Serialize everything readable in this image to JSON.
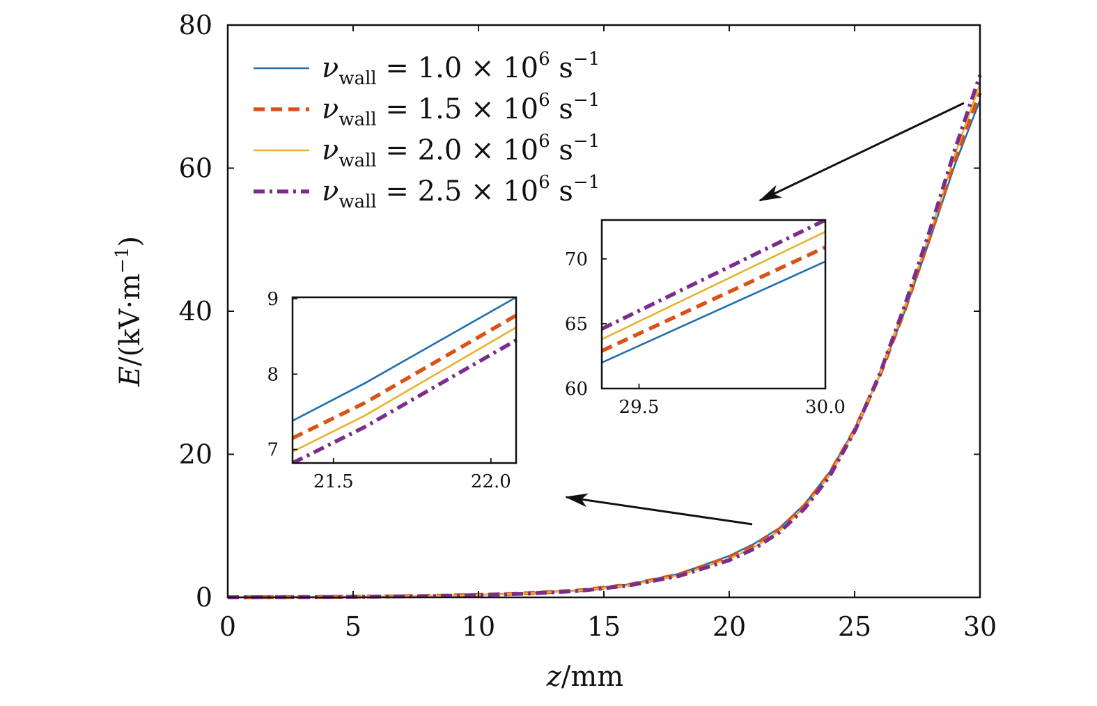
{
  "chart_data": {
    "type": "line",
    "title": "",
    "xlabel": {
      "var": "z",
      "unit": "/mm"
    },
    "ylabel": {
      "var": "E",
      "unit": "/(kV·m",
      "unit_sup": "−1",
      "unit_close": ")"
    },
    "xlim": [
      0,
      30
    ],
    "ylim": [
      0,
      80
    ],
    "xticks": [
      "0",
      "5",
      "10",
      "15",
      "20",
      "25",
      "30"
    ],
    "yticks": [
      "0",
      "20",
      "40",
      "60",
      "80"
    ],
    "legend_position": "top-left",
    "x": [
      0,
      2,
      4,
      6,
      8,
      10,
      12,
      14,
      16,
      18,
      20,
      21,
      22,
      23,
      24,
      25,
      26,
      27,
      28,
      29,
      30
    ],
    "series": [
      {
        "name": "ν_wall = 1.0×10^6 s^-1",
        "legend": {
          "sym": "ν",
          "sub": "wall",
          "mid": " = 1.0 × 10",
          "exp": "6",
          "unit": " s",
          "unit_sup": "−1"
        },
        "color": "#1f6fb0",
        "style": "solid",
        "values": [
          0.02,
          0.04,
          0.07,
          0.12,
          0.2,
          0.35,
          0.6,
          1.0,
          1.8,
          3.3,
          5.8,
          7.5,
          9.7,
          13.0,
          17.5,
          23.5,
          31.0,
          40.0,
          50.0,
          60.5,
          69.5
        ]
      },
      {
        "name": "ν_wall = 1.5×10^6 s^-1",
        "legend": {
          "sym": "ν",
          "sub": "wall",
          "mid": " = 1.5 × 10",
          "exp": "6",
          "unit": " s",
          "unit_sup": "−1"
        },
        "color": "#d95319",
        "style": "dashed",
        "values": [
          0.02,
          0.04,
          0.07,
          0.12,
          0.2,
          0.34,
          0.58,
          0.97,
          1.75,
          3.2,
          5.6,
          7.2,
          9.5,
          12.8,
          17.3,
          23.4,
          31.0,
          40.2,
          50.4,
          61.2,
          70.5
        ]
      },
      {
        "name": "ν_wall = 2.0×10^6 s^-1",
        "legend": {
          "sym": "ν",
          "sub": "wall",
          "mid": " = 2.0 × 10",
          "exp": "6",
          "unit": " s",
          "unit_sup": "−1"
        },
        "color": "#e8b22c",
        "style": "solid",
        "values": [
          0.02,
          0.04,
          0.07,
          0.11,
          0.19,
          0.33,
          0.56,
          0.94,
          1.7,
          3.1,
          5.4,
          7.0,
          9.3,
          12.6,
          17.1,
          23.3,
          31.1,
          40.5,
          50.8,
          61.9,
          71.8
        ]
      },
      {
        "name": "ν_wall = 2.5×10^6 s^-1",
        "legend": {
          "sym": "ν",
          "sub": "wall",
          "mid": " = 2.5 × 10",
          "exp": "6",
          "unit": " s",
          "unit_sup": "−1"
        },
        "color": "#7b2d8e",
        "style": "dashdot",
        "values": [
          0.02,
          0.04,
          0.06,
          0.11,
          0.18,
          0.32,
          0.54,
          0.9,
          1.65,
          3.0,
          5.2,
          6.8,
          9.1,
          12.4,
          16.9,
          23.2,
          31.2,
          40.8,
          51.3,
          62.6,
          73.0
        ]
      }
    ],
    "insets": [
      {
        "name": "inset-low",
        "xlim": [
          21.37,
          22.08
        ],
        "ylim": [
          6.82,
          9.02
        ],
        "xticks": [
          21.5,
          22.0
        ],
        "xtick_labels": [
          "21.5",
          "22.0"
        ],
        "yticks": [
          7,
          8,
          9
        ],
        "ytick_labels": [
          "7",
          "8",
          "9"
        ],
        "x": [
          21.37,
          21.6,
          22.08
        ],
        "series": [
          [
            7.38,
            7.88,
            9.02
          ],
          [
            7.15,
            7.62,
            8.78
          ],
          [
            6.97,
            7.45,
            8.62
          ],
          [
            6.82,
            7.3,
            8.45
          ]
        ]
      },
      {
        "name": "inset-high",
        "xlim": [
          29.4,
          30.0
        ],
        "ylim": [
          60,
          73
        ],
        "xticks": [
          29.5,
          30.0
        ],
        "xtick_labels": [
          "29.5",
          "30.0"
        ],
        "yticks": [
          60,
          65,
          70
        ],
        "ytick_labels": [
          "60",
          "65",
          "70"
        ],
        "x": [
          29.4,
          30.0
        ],
        "series": [
          [
            62.0,
            69.8
          ],
          [
            62.9,
            70.9
          ],
          [
            63.8,
            72.1
          ],
          [
            64.6,
            73.0
          ]
        ]
      }
    ]
  }
}
